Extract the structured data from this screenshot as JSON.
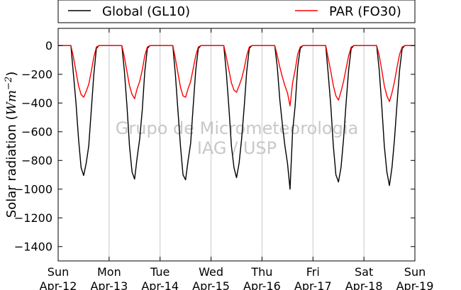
{
  "chart_data": {
    "type": "line",
    "ylabel_text": "Solar radiation (",
    "ylabel_math": "Wm",
    "ylabel_exp": "−2",
    "ylabel_close": ")",
    "ylim": [
      -1500,
      120
    ],
    "yticks": [
      0,
      -200,
      -400,
      -600,
      -800,
      -1000,
      -1200,
      -1400
    ],
    "xlim": [
      0,
      7
    ],
    "xticks": [
      {
        "day": "Sun",
        "date": "Apr-12"
      },
      {
        "day": "Mon",
        "date": "Apr-13"
      },
      {
        "day": "Tue",
        "date": "Apr-14"
      },
      {
        "day": "Wed",
        "date": "Apr-15"
      },
      {
        "day": "Thu",
        "date": "Apr-16"
      },
      {
        "day": "Fri",
        "date": "Apr-17"
      },
      {
        "day": "Sat",
        "date": "Apr-18"
      },
      {
        "day": "Sun",
        "date": "Apr-19"
      }
    ],
    "grid": "vertical",
    "legend_placement": "top (above plot)",
    "watermark": [
      "Grupo de Micrometeorologia",
      "IAG / USP"
    ],
    "daily_min_global": [
      -905,
      -930,
      -935,
      -920,
      -1000,
      -950,
      -975
    ],
    "daily_min_par": [
      -360,
      -370,
      -360,
      -325,
      -420,
      -380,
      -390
    ],
    "series": [
      {
        "name": "Global (GL10)",
        "color": "#000000",
        "x": [
          0.0,
          0.25,
          0.3,
          0.35,
          0.4,
          0.45,
          0.5,
          0.55,
          0.6,
          0.65,
          0.7,
          0.75,
          0.8,
          1.0,
          1.25,
          1.3,
          1.35,
          1.4,
          1.45,
          1.5,
          1.55,
          1.6,
          1.65,
          1.7,
          1.75,
          1.8,
          2.0,
          2.25,
          2.3,
          2.35,
          2.4,
          2.45,
          2.5,
          2.55,
          2.6,
          2.65,
          2.7,
          2.75,
          2.8,
          3.0,
          3.25,
          3.3,
          3.35,
          3.4,
          3.45,
          3.5,
          3.55,
          3.6,
          3.65,
          3.7,
          3.75,
          3.8,
          4.0,
          4.25,
          4.3,
          4.35,
          4.4,
          4.45,
          4.5,
          4.55,
          4.6,
          4.65,
          4.7,
          4.75,
          4.8,
          5.0,
          5.25,
          5.3,
          5.35,
          5.4,
          5.45,
          5.5,
          5.55,
          5.6,
          5.65,
          5.7,
          5.75,
          5.8,
          6.0,
          6.25,
          6.3,
          6.35,
          6.4,
          6.45,
          6.5,
          6.55,
          6.6,
          6.65,
          6.7,
          6.75,
          6.8,
          7.0
        ],
        "y": [
          0,
          0,
          -200,
          -400,
          -650,
          -850,
          -905,
          -820,
          -700,
          -450,
          -200,
          -20,
          0,
          0,
          0,
          -180,
          -420,
          -700,
          -880,
          -930,
          -780,
          -650,
          -450,
          -180,
          -20,
          0,
          0,
          0,
          -200,
          -450,
          -700,
          -900,
          -935,
          -800,
          -680,
          -420,
          -170,
          -20,
          0,
          0,
          0,
          -190,
          -430,
          -700,
          -850,
          -920,
          -820,
          -650,
          -430,
          -180,
          -20,
          0,
          0,
          0,
          -150,
          -380,
          -550,
          -700,
          -820,
          -1000,
          -600,
          -420,
          -150,
          -20,
          0,
          0,
          0,
          -200,
          -420,
          -700,
          -900,
          -950,
          -850,
          -650,
          -400,
          -170,
          -20,
          0,
          0,
          0,
          -170,
          -420,
          -700,
          -880,
          -975,
          -850,
          -650,
          -400,
          -170,
          -20,
          0,
          0
        ]
      },
      {
        "name": "PAR (FO30)",
        "color": "#ff0000",
        "x": [
          0.0,
          0.25,
          0.3,
          0.35,
          0.4,
          0.45,
          0.5,
          0.55,
          0.6,
          0.65,
          0.7,
          0.75,
          0.8,
          1.0,
          1.25,
          1.3,
          1.35,
          1.4,
          1.45,
          1.5,
          1.55,
          1.6,
          1.65,
          1.7,
          1.75,
          1.8,
          2.0,
          2.25,
          2.3,
          2.35,
          2.4,
          2.45,
          2.5,
          2.55,
          2.6,
          2.65,
          2.7,
          2.75,
          2.8,
          3.0,
          3.25,
          3.3,
          3.35,
          3.4,
          3.45,
          3.5,
          3.55,
          3.6,
          3.65,
          3.7,
          3.75,
          3.8,
          4.0,
          4.25,
          4.3,
          4.35,
          4.4,
          4.45,
          4.5,
          4.55,
          4.6,
          4.65,
          4.7,
          4.75,
          4.8,
          5.0,
          5.25,
          5.3,
          5.35,
          5.4,
          5.45,
          5.5,
          5.55,
          5.6,
          5.65,
          5.7,
          5.75,
          5.8,
          6.0,
          6.25,
          6.3,
          6.35,
          6.4,
          6.45,
          6.5,
          6.55,
          6.6,
          6.65,
          6.7,
          6.75,
          6.8,
          7.0
        ],
        "y": [
          0,
          0,
          -80,
          -180,
          -280,
          -340,
          -360,
          -320,
          -270,
          -180,
          -80,
          -10,
          0,
          0,
          0,
          -80,
          -180,
          -280,
          -340,
          -370,
          -300,
          -250,
          -170,
          -70,
          -10,
          0,
          0,
          0,
          -90,
          -190,
          -290,
          -350,
          -360,
          -300,
          -250,
          -160,
          -70,
          -10,
          0,
          0,
          0,
          -80,
          -170,
          -260,
          -310,
          -325,
          -280,
          -230,
          -160,
          -70,
          -10,
          0,
          0,
          0,
          -70,
          -150,
          -220,
          -280,
          -330,
          -420,
          -260,
          -170,
          -60,
          -10,
          0,
          0,
          0,
          -90,
          -180,
          -280,
          -350,
          -380,
          -320,
          -250,
          -160,
          -70,
          -10,
          0,
          0,
          0,
          -70,
          -170,
          -280,
          -350,
          -390,
          -330,
          -250,
          -150,
          -60,
          -10,
          0,
          0
        ]
      }
    ]
  }
}
